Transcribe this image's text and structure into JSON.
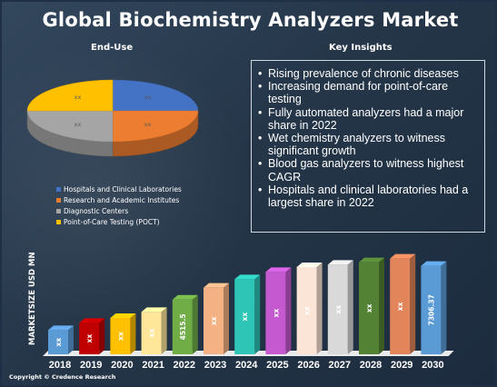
{
  "title": "Global Biochemistry Analyzers Market",
  "end_use": {
    "heading": "End-Use",
    "slice_labels": [
      "xx",
      "xx",
      "xx",
      "xx"
    ],
    "legend": [
      {
        "label": "Hospitals and Clinical Laboratories",
        "color": "#4472c4"
      },
      {
        "label": "Research and Academic Institutes",
        "color": "#ed7d31"
      },
      {
        "label": "Diagnostic Centers",
        "color": "#a5a5a5"
      },
      {
        "label": "Point-of-Care Testing (POCT)",
        "color": "#ffc000"
      }
    ]
  },
  "insights": {
    "heading": "Key Insights",
    "items": [
      "Rising prevalence of chronic diseases",
      "Increasing demand for point-of-care testing",
      "Fully automated analyzers had a major share in 2022",
      "Wet chemistry analyzers to witness significant growth",
      "Blood gas analyzers to witness highest CAGR",
      "Hospitals and clinical laboratories had a largest share in 2022"
    ]
  },
  "chart_data": [
    {
      "type": "pie",
      "title": "End-Use",
      "categories": [
        "Hospitals and Clinical Laboratories",
        "Research and Academic Institutes",
        "Diagnostic Centers",
        "Point-of-Care Testing (POCT)"
      ],
      "values": [
        25,
        25,
        25,
        25
      ],
      "data_labels": [
        "xx",
        "xx",
        "xx",
        "xx"
      ],
      "colors": [
        "#4472c4",
        "#ed7d31",
        "#a5a5a5",
        "#ffc000"
      ],
      "style": "3d"
    },
    {
      "type": "bar",
      "ylabel": "MARKETSIZE USD MN",
      "categories": [
        "2018",
        "2019",
        "2020",
        "2021",
        "2022",
        "2023",
        "2024",
        "2025",
        "2026",
        "2027",
        "2028",
        "2029",
        "2030"
      ],
      "values": [
        2000,
        2600,
        3000,
        3500,
        4515.5,
        5500,
        6200,
        6800,
        7200,
        7400,
        7600,
        7900,
        7306.37
      ],
      "data_labels": [
        "xx",
        "xx",
        "xx",
        "xx",
        "4515.5",
        "xx",
        "xx",
        "xx",
        "xx",
        "xx",
        "xx",
        "xx",
        "7306.37"
      ],
      "colors": [
        "#5b9bd5",
        "#c00000",
        "#ffc000",
        "#ffe699",
        "#70ad47",
        "#f4b183",
        "#2ec4b6",
        "#c55ad0",
        "#fbe5d6",
        "#d9d9d9",
        "#548235",
        "#e2855a",
        "#5b9bd5"
      ],
      "style": "3d"
    }
  ],
  "copyright": "Copyright © Credence Research"
}
